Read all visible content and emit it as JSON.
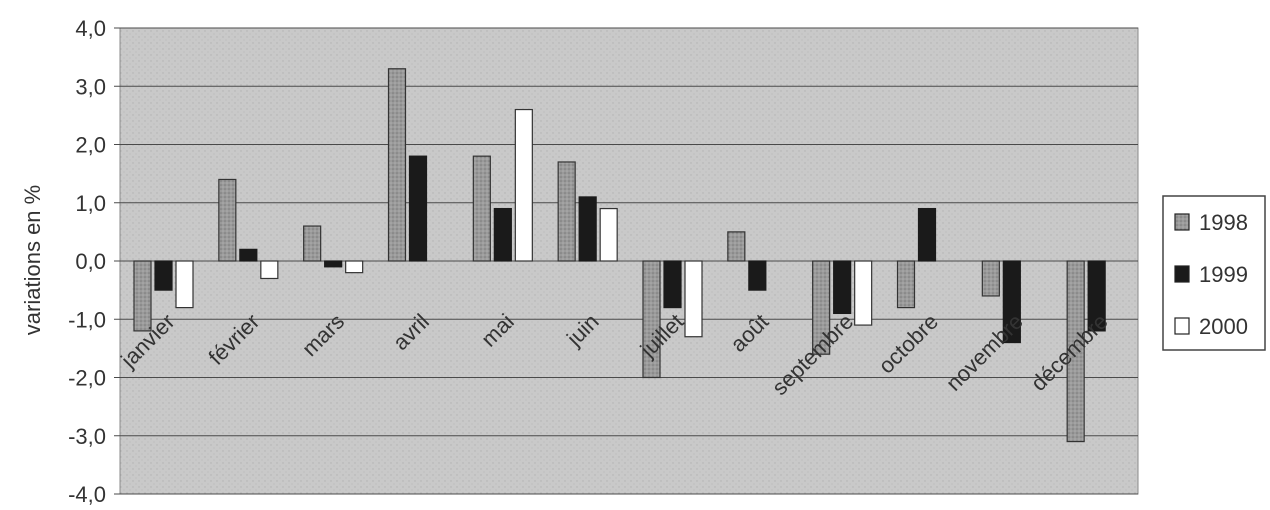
{
  "chart_data": {
    "type": "bar",
    "title": "",
    "xlabel": "",
    "ylabel": "variations en %",
    "ylim": [
      -4.0,
      4.0
    ],
    "yticks": [
      "4,0",
      "3,0",
      "2,0",
      "1,0",
      "0,0",
      "-1,0",
      "-2,0",
      "-3,0",
      "-4,0"
    ],
    "ytick_values": [
      4,
      3,
      2,
      1,
      0,
      -1,
      -2,
      -3,
      -4
    ],
    "grid": true,
    "legend_position": "right",
    "categories": [
      "janvier",
      "février",
      "mars",
      "avril",
      "mai",
      "juin",
      "juillet",
      "août",
      "septembre",
      "octobre",
      "novembre",
      "décembre"
    ],
    "series": [
      {
        "name": "1998",
        "color": "#9a9a9a",
        "values": [
          -1.2,
          1.4,
          0.6,
          3.3,
          1.8,
          1.7,
          -2.0,
          0.5,
          -1.6,
          -0.8,
          -0.6,
          -3.1
        ]
      },
      {
        "name": "1999",
        "color": "#1a1a1a",
        "values": [
          -0.5,
          0.2,
          -0.1,
          1.8,
          0.9,
          1.1,
          -0.8,
          -0.5,
          -0.9,
          0.9,
          -1.4,
          -1.2
        ]
      },
      {
        "name": "2000",
        "color": "#ffffff",
        "values": [
          -0.8,
          -0.3,
          -0.2,
          0.0,
          2.6,
          0.9,
          -1.3,
          0.0,
          -1.1,
          0.0,
          0.0,
          0.0
        ]
      }
    ]
  }
}
